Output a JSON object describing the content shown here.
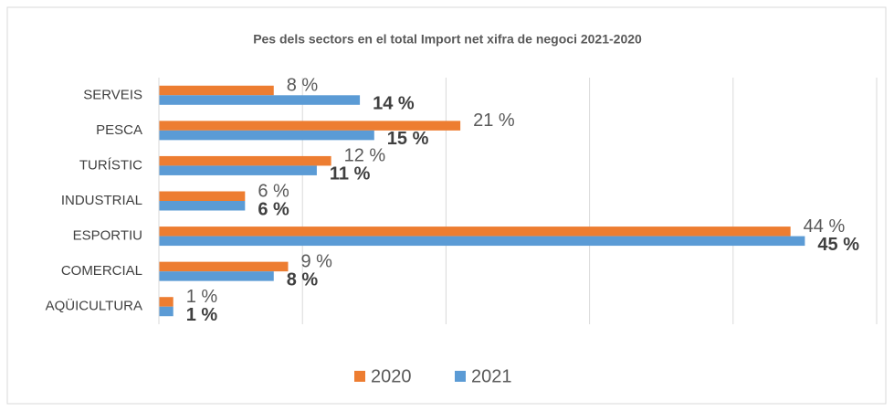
{
  "chart_data": {
    "type": "hbar",
    "title": "Pes dels sectors en el total Import net xifra de negoci 2021-2020",
    "categories": [
      "SERVEIS",
      "PESCA",
      "TURÍSTIC",
      "INDUSTRIAL",
      "ESPORTIU",
      "COMERCIAL",
      "AQÜICULTURA"
    ],
    "series": [
      {
        "name": "2020",
        "color": "#ed7d31",
        "values": [
          8,
          21,
          12,
          6,
          44,
          9,
          1
        ],
        "value_labels": [
          "8 %",
          "21 %",
          "12 %",
          "6 %",
          "44 %",
          "9 %",
          "1 %"
        ]
      },
      {
        "name": "2021",
        "color": "#5b9bd5",
        "values": [
          14,
          15,
          11,
          6,
          45,
          8,
          1
        ],
        "value_labels": [
          "14 %",
          "15 %",
          "11 %",
          "6 %",
          "45 %",
          "8 %",
          "1 %"
        ]
      }
    ],
    "xlim": [
      0,
      50
    ],
    "xticks": [
      0,
      10,
      20,
      30,
      40,
      50
    ],
    "grid": true,
    "legend": "bottom"
  }
}
